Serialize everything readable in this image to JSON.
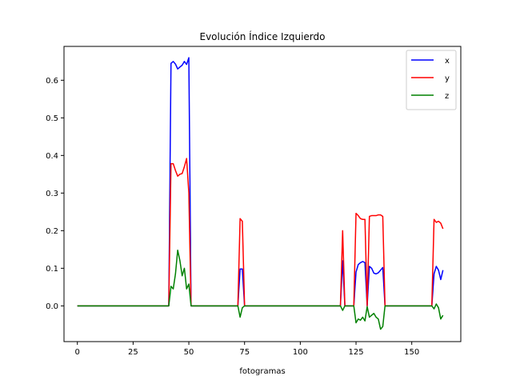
{
  "chart_data": {
    "type": "line",
    "title": "Evolución Índice Izquierdo",
    "xlabel": "fotogramas",
    "ylabel": "",
    "xlim": [
      -6,
      172
    ],
    "ylim": [
      -0.095,
      0.69
    ],
    "xticks": [
      0,
      25,
      50,
      75,
      100,
      125,
      150
    ],
    "yticks": [
      0.0,
      0.1,
      0.2,
      0.3,
      0.4,
      0.5,
      0.6
    ],
    "grid": false,
    "legend_position": "top-right",
    "series": [
      {
        "name": "x",
        "color": "#0000ff",
        "points": [
          [
            0,
            0
          ],
          [
            41,
            0
          ],
          [
            42,
            0.645
          ],
          [
            43,
            0.65
          ],
          [
            44,
            0.643
          ],
          [
            45,
            0.63
          ],
          [
            46,
            0.635
          ],
          [
            47,
            0.64
          ],
          [
            48,
            0.65
          ],
          [
            49,
            0.642
          ],
          [
            50,
            0.66
          ],
          [
            51,
            0
          ],
          [
            72,
            0
          ],
          [
            73,
            0.098
          ],
          [
            74,
            0.098
          ],
          [
            75,
            0
          ],
          [
            118,
            0
          ],
          [
            119,
            0.12
          ],
          [
            120,
            0
          ],
          [
            124,
            0
          ],
          [
            125,
            0.09
          ],
          [
            126,
            0.11
          ],
          [
            127,
            0.115
          ],
          [
            128,
            0.118
          ],
          [
            129,
            0.115
          ],
          [
            130,
            0
          ],
          [
            131,
            0.105
          ],
          [
            132,
            0.1
          ],
          [
            133,
            0.087
          ],
          [
            134,
            0.085
          ],
          [
            135,
            0.088
          ],
          [
            136,
            0.095
          ],
          [
            137,
            0.102
          ],
          [
            138,
            0
          ],
          [
            159,
            0
          ],
          [
            160,
            0.085
          ],
          [
            161,
            0.105
          ],
          [
            162,
            0.095
          ],
          [
            163,
            0.07
          ],
          [
            164,
            0.095
          ]
        ]
      },
      {
        "name": "y",
        "color": "#ff0000",
        "points": [
          [
            0,
            0
          ],
          [
            41,
            0
          ],
          [
            42,
            0.378
          ],
          [
            43,
            0.378
          ],
          [
            44,
            0.36
          ],
          [
            45,
            0.345
          ],
          [
            46,
            0.35
          ],
          [
            47,
            0.352
          ],
          [
            48,
            0.37
          ],
          [
            49,
            0.392
          ],
          [
            50,
            0.3
          ],
          [
            51,
            0
          ],
          [
            72,
            0
          ],
          [
            73,
            0.232
          ],
          [
            74,
            0.225
          ],
          [
            75,
            0
          ],
          [
            118,
            0
          ],
          [
            119,
            0.2
          ],
          [
            120,
            0
          ],
          [
            124,
            0
          ],
          [
            125,
            0.246
          ],
          [
            126,
            0.24
          ],
          [
            127,
            0.232
          ],
          [
            128,
            0.23
          ],
          [
            129,
            0.23
          ],
          [
            130,
            0
          ],
          [
            131,
            0.238
          ],
          [
            132,
            0.24
          ],
          [
            133,
            0.24
          ],
          [
            134,
            0.24
          ],
          [
            135,
            0.242
          ],
          [
            136,
            0.242
          ],
          [
            137,
            0.238
          ],
          [
            138,
            0
          ],
          [
            159,
            0
          ],
          [
            160,
            0.23
          ],
          [
            161,
            0.222
          ],
          [
            162,
            0.225
          ],
          [
            163,
            0.22
          ],
          [
            164,
            0.205
          ]
        ]
      },
      {
        "name": "z",
        "color": "#008000",
        "points": [
          [
            0,
            0
          ],
          [
            41,
            0
          ],
          [
            42,
            0.052
          ],
          [
            43,
            0.045
          ],
          [
            44,
            0.085
          ],
          [
            45,
            0.148
          ],
          [
            46,
            0.12
          ],
          [
            47,
            0.08
          ],
          [
            48,
            0.1
          ],
          [
            49,
            0.045
          ],
          [
            50,
            0.058
          ],
          [
            51,
            0
          ],
          [
            72,
            0
          ],
          [
            73,
            -0.03
          ],
          [
            74,
            -0.005
          ],
          [
            75,
            0
          ],
          [
            118,
            0
          ],
          [
            119,
            -0.012
          ],
          [
            120,
            0
          ],
          [
            124,
            0
          ],
          [
            125,
            -0.045
          ],
          [
            126,
            -0.035
          ],
          [
            127,
            -0.038
          ],
          [
            128,
            -0.03
          ],
          [
            129,
            -0.04
          ],
          [
            130,
            -0.002
          ],
          [
            131,
            -0.03
          ],
          [
            132,
            -0.025
          ],
          [
            133,
            -0.02
          ],
          [
            134,
            -0.03
          ],
          [
            135,
            -0.035
          ],
          [
            136,
            -0.062
          ],
          [
            137,
            -0.055
          ],
          [
            138,
            0
          ],
          [
            159,
            0
          ],
          [
            160,
            -0.008
          ],
          [
            161,
            0.005
          ],
          [
            162,
            -0.005
          ],
          [
            163,
            -0.035
          ],
          [
            164,
            -0.025
          ]
        ]
      }
    ]
  }
}
